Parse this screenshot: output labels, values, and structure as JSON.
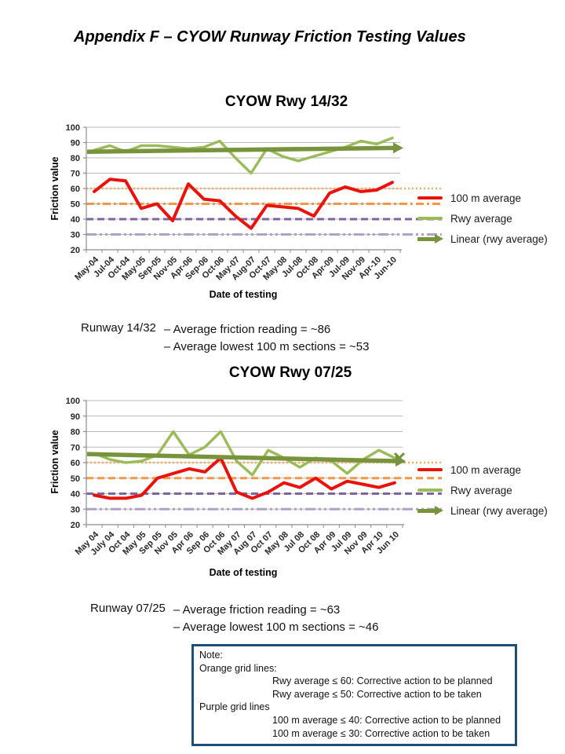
{
  "page_title": "Appendix F – CYOW Runway Friction Testing Values",
  "chart_data": [
    {
      "type": "line",
      "title": "CYOW Rwy 14/32",
      "xlabel": "Date of testing",
      "ylabel": "Friction value",
      "ylim": [
        20,
        100
      ],
      "ytick_step": 10,
      "grid": true,
      "legend_position": "right",
      "categories": [
        "May-04",
        "Jul-04",
        "Oct-04",
        "May-05",
        "Sep-05",
        "Nov-05",
        "Apr-06",
        "Sep-06",
        "Oct-06",
        "May-07",
        "Aug-07",
        "Oct-07",
        "May-08",
        "Jul-08",
        "Oct-08",
        "Apr-09",
        "Jul-09",
        "Nov-09",
        "Apr-10",
        "Jun-10"
      ],
      "series": [
        {
          "name": "100 m average",
          "color": "#e8130b",
          "values": [
            58,
            66,
            65,
            47,
            50,
            39,
            63,
            53,
            52,
            42,
            34,
            49,
            48,
            47,
            42,
            57,
            61,
            58,
            59,
            64
          ]
        },
        {
          "name": "Rwy average",
          "color": "#9bbb59",
          "values": [
            85,
            88,
            84,
            88,
            88,
            87,
            86,
            87,
            91,
            80,
            70,
            86,
            81,
            78,
            81,
            84,
            87,
            91,
            89,
            93
          ]
        },
        {
          "name": "Linear (rwy average)",
          "color": "#77933c",
          "style": "trend-arrow",
          "values": [
            84,
            86.5
          ]
        }
      ],
      "reference_lines": [
        {
          "value": 60,
          "color": "#fbab60",
          "style": "dotted"
        },
        {
          "value": 50,
          "color": "#f79646",
          "style": "dash-dot"
        },
        {
          "value": 40,
          "color": "#8064a2",
          "style": "dashed"
        },
        {
          "value": 30,
          "color": "#b2a1c7",
          "style": "dash-dot-dot"
        }
      ]
    },
    {
      "type": "line",
      "title": "CYOW Rwy 07/25",
      "xlabel": "Date of testing",
      "ylabel": "Friction value",
      "ylim": [
        20,
        100
      ],
      "ytick_step": 10,
      "grid": true,
      "legend_position": "right",
      "categories": [
        "May 04",
        "July 04",
        "Oct 04",
        "May 05",
        "Sep 05",
        "Nov 05",
        "Apr 06",
        "Sep 06",
        "Oct 06",
        "May 07",
        "Aug 07",
        "Oct 07",
        "May 08",
        "Jul 08",
        "Oct 08",
        "Apr 09",
        "Jul 09",
        "Nov 09",
        "Apr 10",
        "Jun 10"
      ],
      "series": [
        {
          "name": "100 m average",
          "color": "#e8130b",
          "values": [
            39,
            37,
            37,
            39,
            50,
            53,
            56,
            54,
            63,
            41,
            37,
            41,
            47,
            44,
            50,
            43,
            48,
            46,
            44,
            47
          ]
        },
        {
          "name": "Rwy average",
          "color": "#9bbb59",
          "values": [
            66,
            62,
            60,
            61,
            65,
            80,
            65,
            70,
            80,
            61,
            52,
            68,
            63,
            57,
            63,
            61,
            53,
            62,
            68,
            63
          ]
        },
        {
          "name": "Linear (rwy average)",
          "color": "#77933c",
          "style": "trend-arrow",
          "values": [
            65.5,
            61
          ]
        }
      ],
      "reference_lines": [
        {
          "value": 60,
          "color": "#fbab60",
          "style": "dotted"
        },
        {
          "value": 50,
          "color": "#f79646",
          "style": "dashed"
        },
        {
          "value": 40,
          "color": "#8064a2",
          "style": "dashed"
        },
        {
          "value": 30,
          "color": "#b2a1c7",
          "style": "dash-dot-dot"
        }
      ],
      "end_marker": {
        "symbol": "x",
        "at_value": 62
      }
    }
  ],
  "summaries": [
    {
      "runway": "Runway 14/32",
      "lines": [
        "– Average friction reading = ~86",
        "– Average lowest 100 m sections =  ~53"
      ]
    },
    {
      "runway": "Runway 07/25",
      "lines": [
        "– Average friction reading = ~63",
        "– Average lowest 100 m sections = ~46"
      ]
    }
  ],
  "note": {
    "title": "Note:",
    "sections": [
      {
        "heading": "Orange grid lines:",
        "rules": [
          "Rwy average ≤ 60: Corrective action to be planned",
          "Rwy average ≤ 50: Corrective action to be taken"
        ]
      },
      {
        "heading": "Purple grid lines",
        "rules": [
          "100 m average ≤ 40: Corrective action to be planned",
          "100 m average ≤ 30: Corrective action to be taken"
        ]
      }
    ]
  }
}
